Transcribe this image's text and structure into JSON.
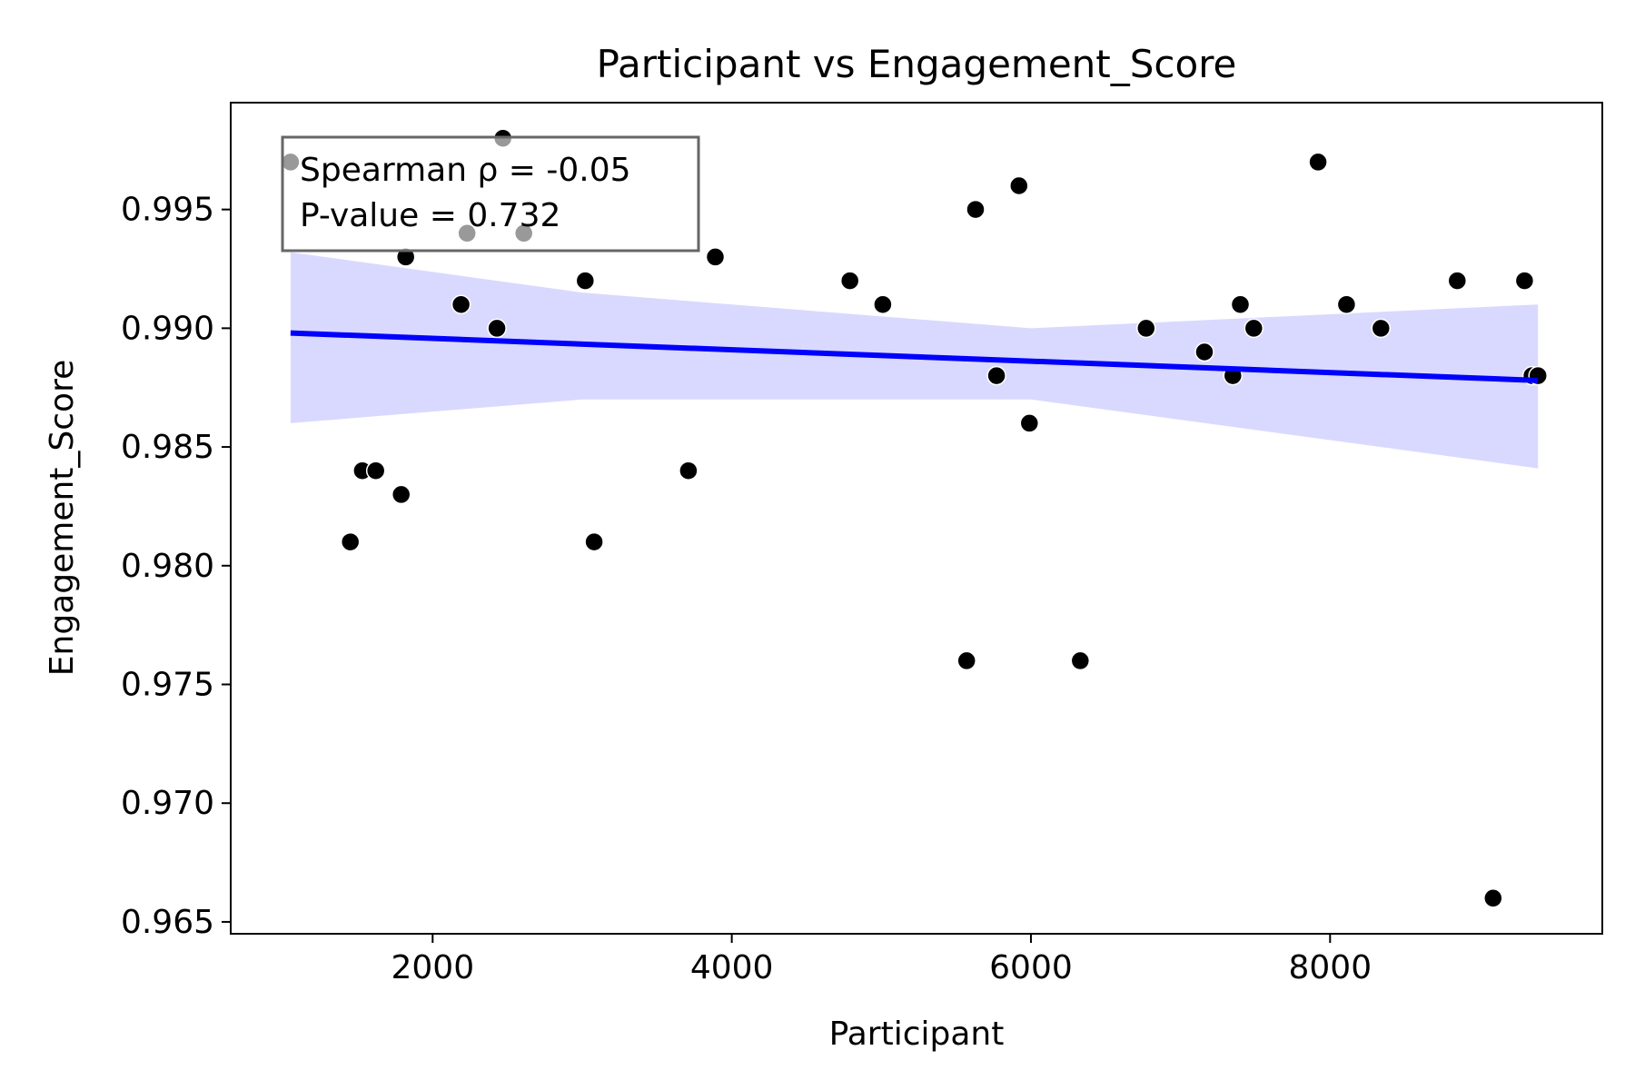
{
  "chart_data": {
    "type": "scatter",
    "title": "Participant vs Engagement_Score",
    "xlabel": "Participant",
    "ylabel": "Engagement_Score",
    "xlim": [
      650,
      9820
    ],
    "ylim": [
      0.9645,
      0.9995
    ],
    "x_ticks": [
      2000,
      4000,
      6000,
      8000
    ],
    "y_ticks": [
      0.965,
      0.97,
      0.975,
      0.98,
      0.985,
      0.99,
      0.995
    ],
    "x_tick_labels": [
      "2000",
      "4000",
      "6000",
      "8000"
    ],
    "y_tick_labels": [
      "0.965",
      "0.970",
      "0.975",
      "0.980",
      "0.985",
      "0.990",
      "0.995"
    ],
    "grid": false,
    "points": {
      "x": [
        1050,
        1450,
        1530,
        1620,
        1790,
        1820,
        2190,
        2230,
        2430,
        2470,
        2610,
        3020,
        3080,
        3710,
        3890,
        4790,
        5010,
        5570,
        5630,
        5770,
        5920,
        5990,
        6330,
        6770,
        7160,
        7350,
        7400,
        7490,
        7920,
        8110,
        8340,
        8850,
        9090,
        9300,
        9350,
        9390
      ],
      "y": [
        0.997,
        0.981,
        0.984,
        0.984,
        0.983,
        0.993,
        0.991,
        0.994,
        0.99,
        0.998,
        0.994,
        0.992,
        0.981,
        0.984,
        0.993,
        0.992,
        0.991,
        0.976,
        0.995,
        0.988,
        0.996,
        0.986,
        0.976,
        0.99,
        0.989,
        0.988,
        0.991,
        0.99,
        0.997,
        0.991,
        0.99,
        0.992,
        0.966,
        0.992,
        0.988,
        0.988
      ],
      "color": "#000000"
    },
    "regression": {
      "x": [
        1050,
        9390
      ],
      "y": [
        0.9898,
        0.9878
      ],
      "color": "#0000ff"
    },
    "confidence_band": {
      "x": [
        1050,
        3000,
        6000,
        9390
      ],
      "upper": [
        0.9932,
        0.9915,
        0.99,
        0.991
      ],
      "lower": [
        0.986,
        0.987,
        0.987,
        0.9841
      ],
      "color": "#d9d9ff"
    },
    "annotation": {
      "lines": [
        "Spearman ρ = -0.05",
        "P-value = 0.732"
      ],
      "placement": "top-left"
    }
  }
}
